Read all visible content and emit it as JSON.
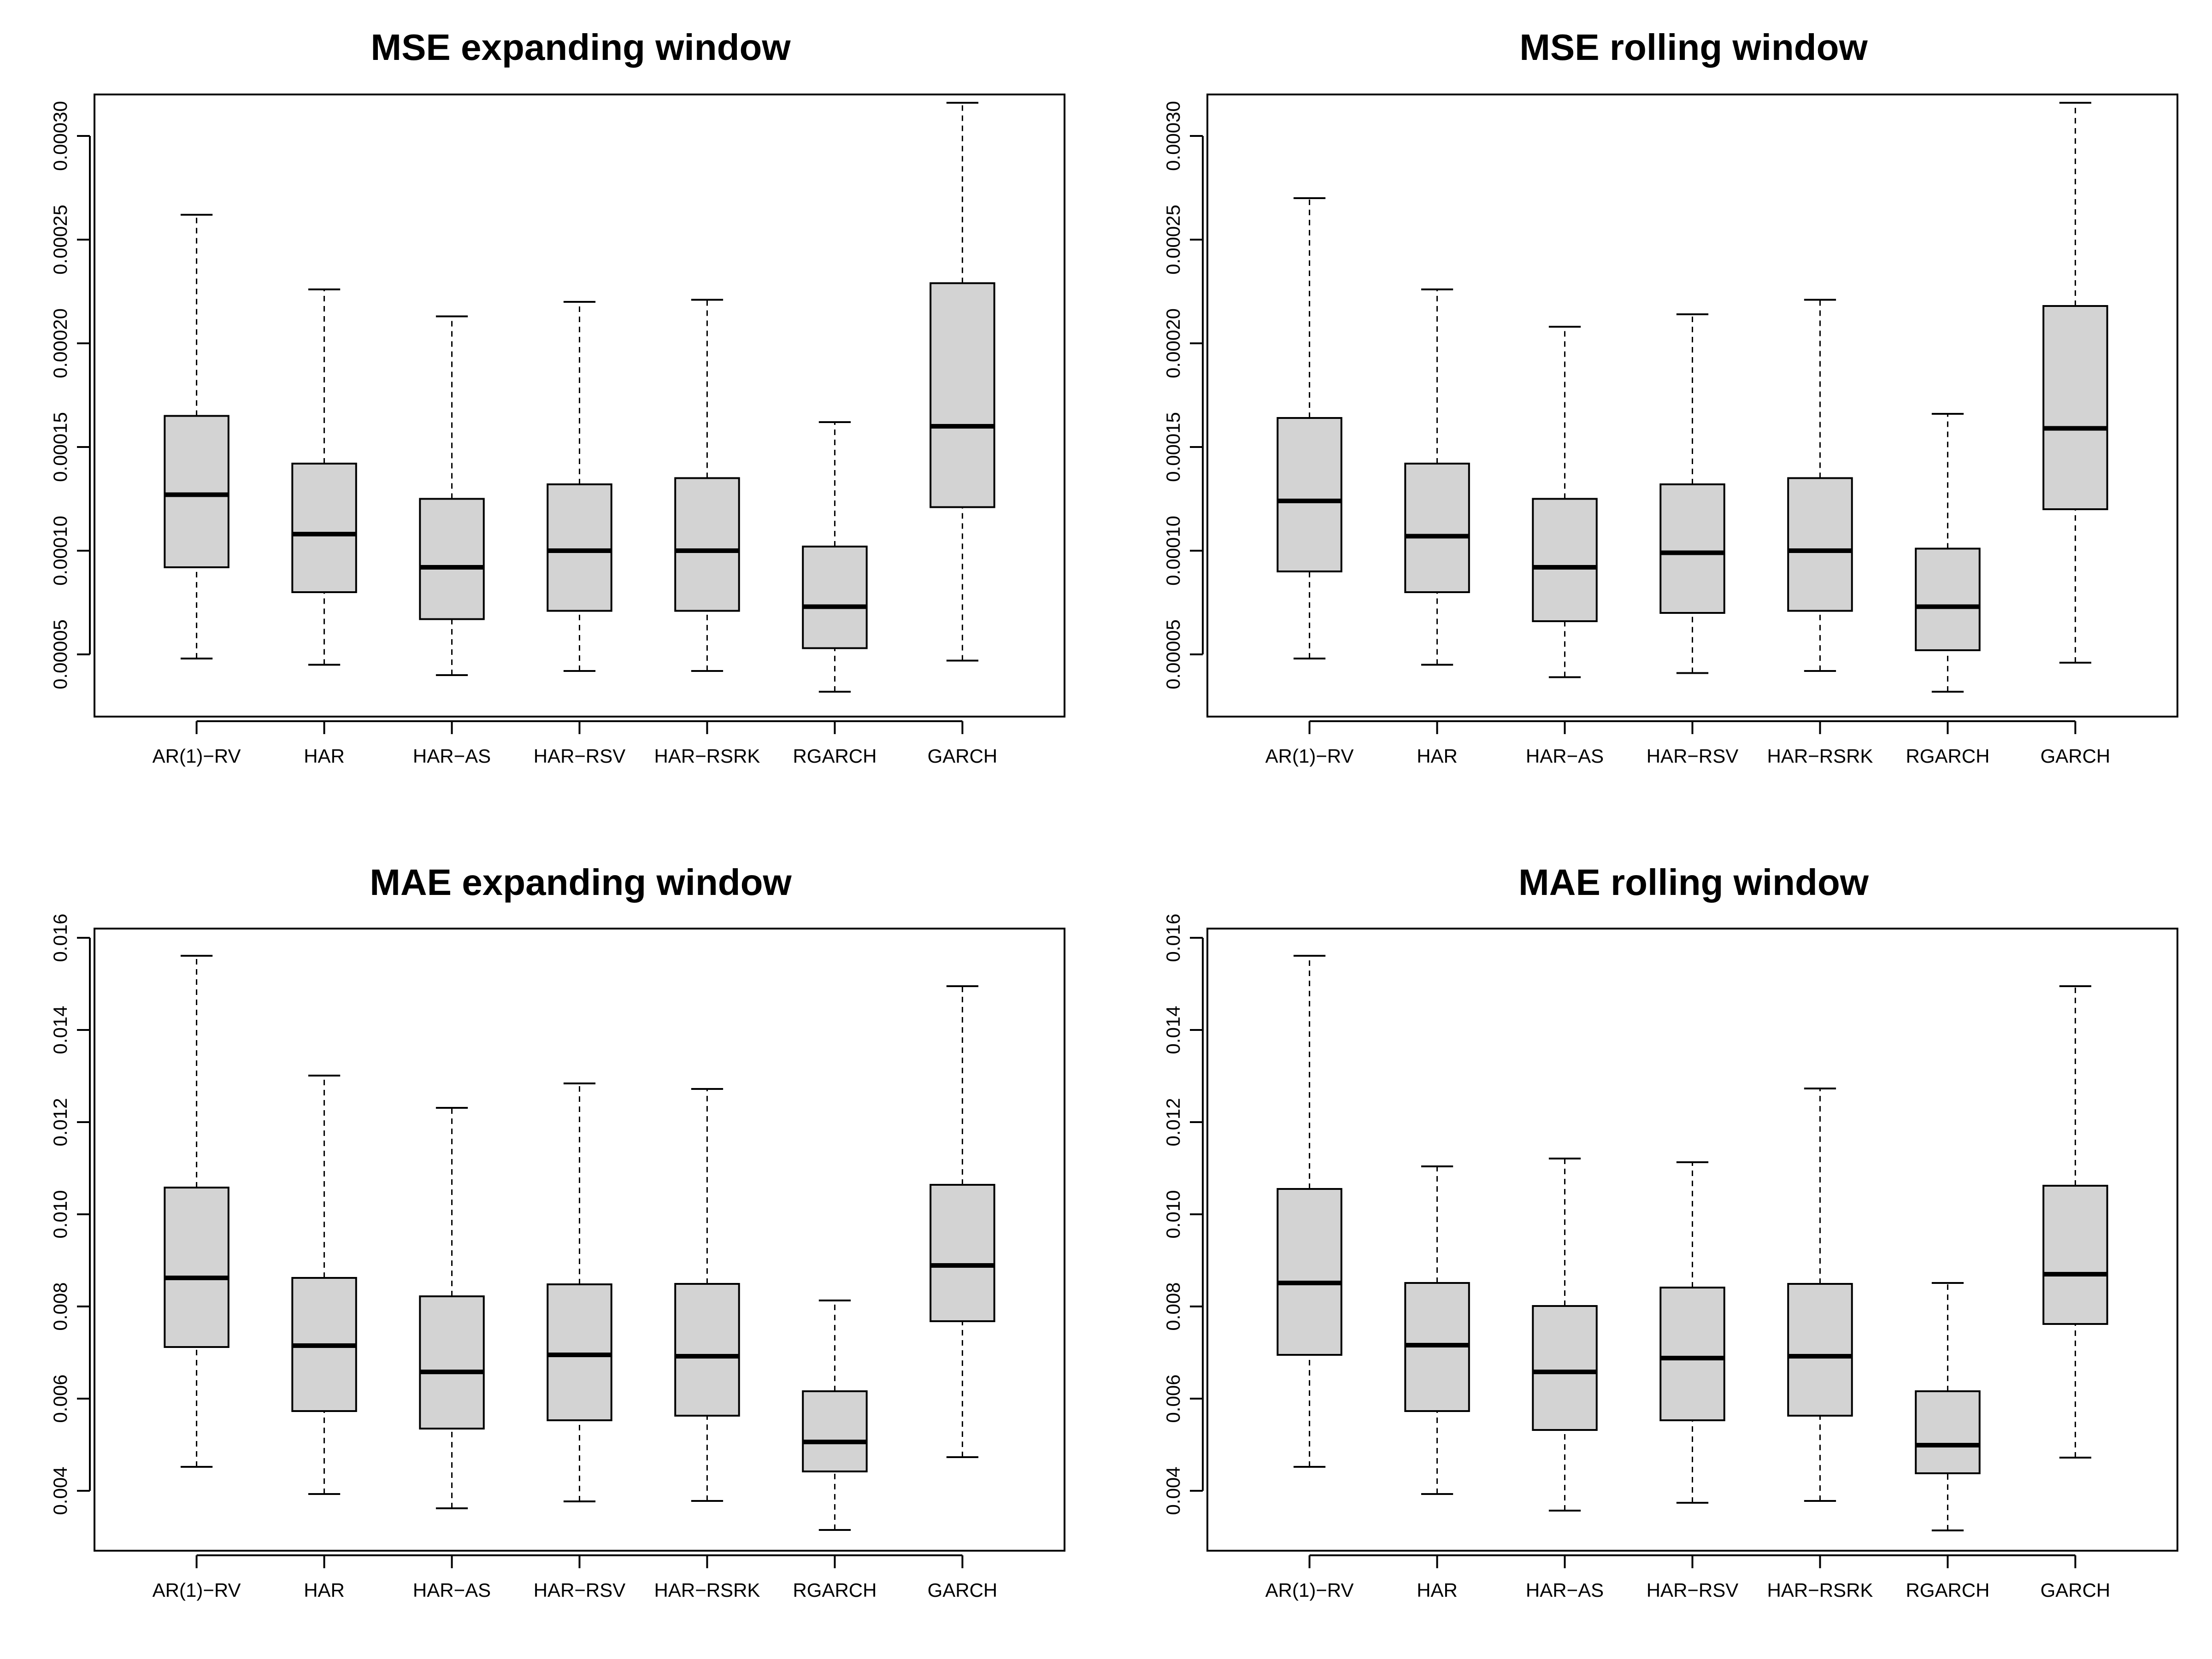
{
  "chart_data": [
    {
      "type": "boxplot",
      "title": "MSE expanding window",
      "categories": [
        "AR(1)−RV",
        "HAR",
        "HAR−AS",
        "HAR−RSV",
        "HAR−RSRK",
        "RGARCH",
        "GARCH"
      ],
      "yticks": [
        "0.00005",
        "0.00010",
        "0.00015",
        "0.00020",
        "0.00025",
        "0.00030"
      ],
      "ylim": [
        2e-05,
        0.00032
      ],
      "boxes": [
        {
          "min": 4.8e-05,
          "q1": 9.2e-05,
          "median": 0.000127,
          "q3": 0.000165,
          "max": 0.000262
        },
        {
          "min": 4.5e-05,
          "q1": 8e-05,
          "median": 0.000108,
          "q3": 0.000142,
          "max": 0.000226
        },
        {
          "min": 4e-05,
          "q1": 6.7e-05,
          "median": 9.2e-05,
          "q3": 0.000125,
          "max": 0.000213
        },
        {
          "min": 4.2e-05,
          "q1": 7.1e-05,
          "median": 0.0001,
          "q3": 0.000132,
          "max": 0.00022
        },
        {
          "min": 4.2e-05,
          "q1": 7.1e-05,
          "median": 0.0001,
          "q3": 0.000135,
          "max": 0.000221
        },
        {
          "min": 3.2e-05,
          "q1": 5.3e-05,
          "median": 7.3e-05,
          "q3": 0.000102,
          "max": 0.000162
        },
        {
          "min": 4.7e-05,
          "q1": 0.000121,
          "median": 0.00016,
          "q3": 0.000229,
          "max": 0.000316
        }
      ]
    },
    {
      "type": "boxplot",
      "title": "MSE rolling window",
      "categories": [
        "AR(1)−RV",
        "HAR",
        "HAR−AS",
        "HAR−RSV",
        "HAR−RSRK",
        "RGARCH",
        "GARCH"
      ],
      "yticks": [
        "0.00005",
        "0.00010",
        "0.00015",
        "0.00020",
        "0.00025",
        "0.00030"
      ],
      "ylim": [
        2e-05,
        0.00032
      ],
      "boxes": [
        {
          "min": 4.8e-05,
          "q1": 9e-05,
          "median": 0.000124,
          "q3": 0.000164,
          "max": 0.00027
        },
        {
          "min": 4.5e-05,
          "q1": 8e-05,
          "median": 0.000107,
          "q3": 0.000142,
          "max": 0.000226
        },
        {
          "min": 3.9e-05,
          "q1": 6.6e-05,
          "median": 9.2e-05,
          "q3": 0.000125,
          "max": 0.000208
        },
        {
          "min": 4.1e-05,
          "q1": 7e-05,
          "median": 9.9e-05,
          "q3": 0.000132,
          "max": 0.000214
        },
        {
          "min": 4.2e-05,
          "q1": 7.1e-05,
          "median": 0.0001,
          "q3": 0.000135,
          "max": 0.000221
        },
        {
          "min": 3.2e-05,
          "q1": 5.2e-05,
          "median": 7.3e-05,
          "q3": 0.000101,
          "max": 0.000166
        },
        {
          "min": 4.6e-05,
          "q1": 0.00012,
          "median": 0.000159,
          "q3": 0.000218,
          "max": 0.000316
        }
      ]
    },
    {
      "type": "boxplot",
      "title": "MAE expanding window",
      "categories": [
        "AR(1)−RV",
        "HAR",
        "HAR−AS",
        "HAR−RSV",
        "HAR−RSRK",
        "RGARCH",
        "GARCH"
      ],
      "yticks": [
        "0.004",
        "0.006",
        "0.008",
        "0.010",
        "0.012",
        "0.014",
        "0.016"
      ],
      "ylim": [
        0.0027,
        0.0162
      ],
      "boxes": [
        {
          "min": 0.00452,
          "q1": 0.00712,
          "median": 0.00862,
          "q3": 0.01058,
          "max": 0.01561
        },
        {
          "min": 0.00393,
          "q1": 0.00573,
          "median": 0.00715,
          "q3": 0.00862,
          "max": 0.01301
        },
        {
          "min": 0.00362,
          "q1": 0.00535,
          "median": 0.00658,
          "q3": 0.00822,
          "max": 0.01231
        },
        {
          "min": 0.00377,
          "q1": 0.00553,
          "median": 0.00695,
          "q3": 0.00848,
          "max": 0.01284
        },
        {
          "min": 0.00378,
          "q1": 0.00563,
          "median": 0.00692,
          "q3": 0.00849,
          "max": 0.01272
        },
        {
          "min": 0.00315,
          "q1": 0.00442,
          "median": 0.00506,
          "q3": 0.00616,
          "max": 0.00813
        },
        {
          "min": 0.00473,
          "q1": 0.00768,
          "median": 0.00889,
          "q3": 0.01064,
          "max": 0.01495
        }
      ]
    },
    {
      "type": "boxplot",
      "title": "MAE rolling window",
      "categories": [
        "AR(1)−RV",
        "HAR",
        "HAR−AS",
        "HAR−RSV",
        "HAR−RSRK",
        "RGARCH",
        "GARCH"
      ],
      "yticks": [
        "0.004",
        "0.006",
        "0.008",
        "0.010",
        "0.012",
        "0.014",
        "0.016"
      ],
      "ylim": [
        0.0027,
        0.0162
      ],
      "boxes": [
        {
          "min": 0.00452,
          "q1": 0.00695,
          "median": 0.00851,
          "q3": 0.01055,
          "max": 0.01561
        },
        {
          "min": 0.00393,
          "q1": 0.00573,
          "median": 0.00716,
          "q3": 0.00851,
          "max": 0.01104
        },
        {
          "min": 0.00357,
          "q1": 0.00532,
          "median": 0.00658,
          "q3": 0.00801,
          "max": 0.01121
        },
        {
          "min": 0.00374,
          "q1": 0.00553,
          "median": 0.00688,
          "q3": 0.00841,
          "max": 0.01113
        },
        {
          "min": 0.00378,
          "q1": 0.00563,
          "median": 0.00692,
          "q3": 0.00849,
          "max": 0.01273
        },
        {
          "min": 0.00314,
          "q1": 0.00438,
          "median": 0.00499,
          "q3": 0.00616,
          "max": 0.00851
        },
        {
          "min": 0.00472,
          "q1": 0.00762,
          "median": 0.0087,
          "q3": 0.01062,
          "max": 0.01495
        }
      ]
    }
  ],
  "colors": {
    "box_fill": "#d3d3d3",
    "stroke": "#000000",
    "background": "#ffffff"
  }
}
